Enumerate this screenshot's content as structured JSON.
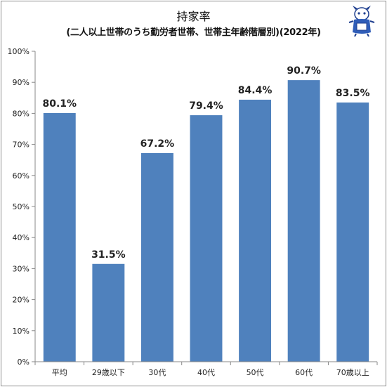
{
  "chart_data": {
    "type": "bar",
    "title": "持家率",
    "subtitle": "(二人以上世帯のうち勤労者世帯、世帯主年齢階層別)(2022年)",
    "categories": [
      "平均",
      "29歳以下",
      "30代",
      "40代",
      "50代",
      "60代",
      "70歳以上"
    ],
    "values": [
      80.1,
      31.5,
      67.2,
      79.4,
      84.4,
      90.7,
      83.5
    ],
    "data_labels": [
      "80.1%",
      "31.5%",
      "67.2%",
      "79.4%",
      "84.4%",
      "90.7%",
      "83.5%"
    ],
    "ylim": [
      0,
      100
    ],
    "yticks": [
      "0%",
      "10%",
      "20%",
      "30%",
      "40%",
      "50%",
      "60%",
      "70%",
      "80%",
      "90%",
      "100%"
    ],
    "xlabel": "",
    "ylabel": "",
    "grid": false,
    "legend": "none",
    "bar_color": "#4f81bd"
  }
}
